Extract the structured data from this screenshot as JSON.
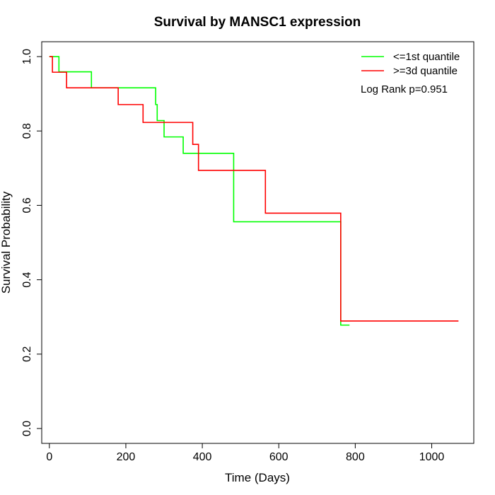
{
  "chart_data": {
    "type": "line",
    "subtype": "kaplan-meier step",
    "title": "Survival by MANSC1 expression",
    "xlabel": "Time (Days)",
    "ylabel": "Survival Probability",
    "xlim": [
      -20,
      1110
    ],
    "ylim": [
      -0.04,
      1.04
    ],
    "xticks": [
      0,
      200,
      400,
      600,
      800,
      1000
    ],
    "yticks": [
      0.0,
      0.2,
      0.4,
      0.6,
      0.8,
      1.0
    ],
    "xtick_labels": [
      "0",
      "200",
      "400",
      "600",
      "800",
      "1000"
    ],
    "ytick_labels": [
      "0.0",
      "0.2",
      "0.4",
      "0.6",
      "0.8",
      "1.0"
    ],
    "grid": false,
    "legend_position": "top-right",
    "annotation": "Log Rank p=0.951",
    "series": [
      {
        "name": "<=1st quantile",
        "color": "#00ff00",
        "x": [
          0,
          25,
          110,
          278,
          282,
          300,
          350,
          482,
          762,
          785
        ],
        "y": [
          1.0,
          0.959,
          0.916,
          0.871,
          0.828,
          0.784,
          0.74,
          0.556,
          0.278,
          0.278
        ]
      },
      {
        "name": ">=3d quantile",
        "color": "#ff0000",
        "x": [
          0,
          8,
          45,
          180,
          245,
          375,
          390,
          565,
          762,
          1070
        ],
        "y": [
          1.0,
          0.958,
          0.916,
          0.871,
          0.823,
          0.764,
          0.694,
          0.579,
          0.289,
          0.289
        ]
      }
    ]
  }
}
